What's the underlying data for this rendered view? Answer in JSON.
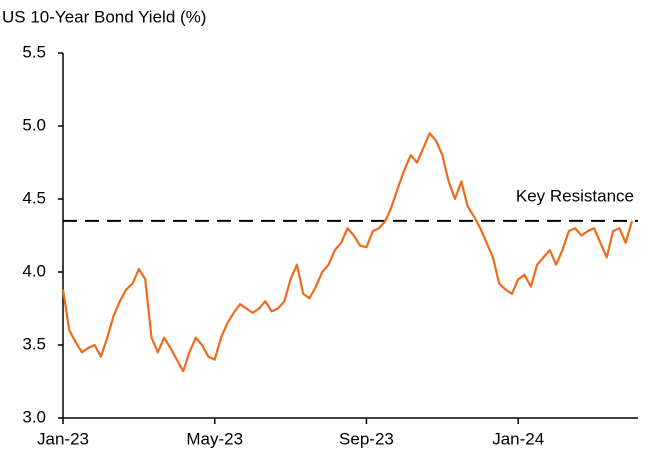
{
  "chart_data": {
    "type": "line",
    "title": "US 10-Year Bond Yield (%)",
    "categories": [
      "Jan-23",
      null,
      null,
      null,
      null,
      null,
      null,
      null,
      null,
      null,
      null,
      null,
      null,
      null,
      null,
      null,
      null,
      null,
      null,
      null,
      null,
      null,
      null,
      null,
      "May-23",
      null,
      null,
      null,
      null,
      null,
      null,
      null,
      null,
      null,
      null,
      null,
      null,
      null,
      null,
      null,
      null,
      null,
      null,
      null,
      null,
      null,
      null,
      null,
      "Sep-23",
      null,
      null,
      null,
      null,
      null,
      null,
      null,
      null,
      null,
      null,
      null,
      null,
      null,
      null,
      null,
      null,
      null,
      null,
      null,
      null,
      null,
      null,
      null,
      "Jan-24",
      null,
      null,
      null,
      null,
      null,
      null,
      null,
      null,
      null,
      null,
      null,
      null,
      null,
      null,
      null,
      null,
      null,
      null
    ],
    "series": [
      {
        "name": "US 10-Year Bond Yield",
        "color": "#ee6a1f",
        "values": [
          3.88,
          3.6,
          3.52,
          3.45,
          3.48,
          3.5,
          3.42,
          3.55,
          3.7,
          3.8,
          3.88,
          3.92,
          4.02,
          3.95,
          3.55,
          3.45,
          3.55,
          3.48,
          3.4,
          3.32,
          3.45,
          3.55,
          3.5,
          3.42,
          3.4,
          3.55,
          3.65,
          3.72,
          3.78,
          3.75,
          3.72,
          3.75,
          3.8,
          3.73,
          3.75,
          3.8,
          3.95,
          4.05,
          3.85,
          3.82,
          3.9,
          4.0,
          4.05,
          4.15,
          4.2,
          4.3,
          4.25,
          4.18,
          4.17,
          4.28,
          4.3,
          4.35,
          4.45,
          4.58,
          4.7,
          4.8,
          4.75,
          4.85,
          4.95,
          4.9,
          4.8,
          4.62,
          4.5,
          4.62,
          4.45,
          4.38,
          4.3,
          4.2,
          4.1,
          3.92,
          3.88,
          3.85,
          3.95,
          3.98,
          3.9,
          4.05,
          4.1,
          4.15,
          4.05,
          4.15,
          4.28,
          4.3,
          4.25,
          4.28,
          4.3,
          4.2,
          4.1,
          4.28,
          4.3,
          4.2,
          4.35
        ]
      }
    ],
    "reference_line": {
      "value": 4.35,
      "label": "Key Resistance"
    },
    "ylim": [
      3,
      5.5
    ],
    "yticks": [
      {
        "value": 3,
        "label": "3.0"
      },
      {
        "value": 3.5,
        "label": "3.5"
      },
      {
        "value": 4,
        "label": "4.0"
      },
      {
        "value": 4.5,
        "label": "4.5"
      },
      {
        "value": 5,
        "label": "5.0"
      },
      {
        "value": 5.5,
        "label": "5.5"
      }
    ],
    "grid": false
  }
}
